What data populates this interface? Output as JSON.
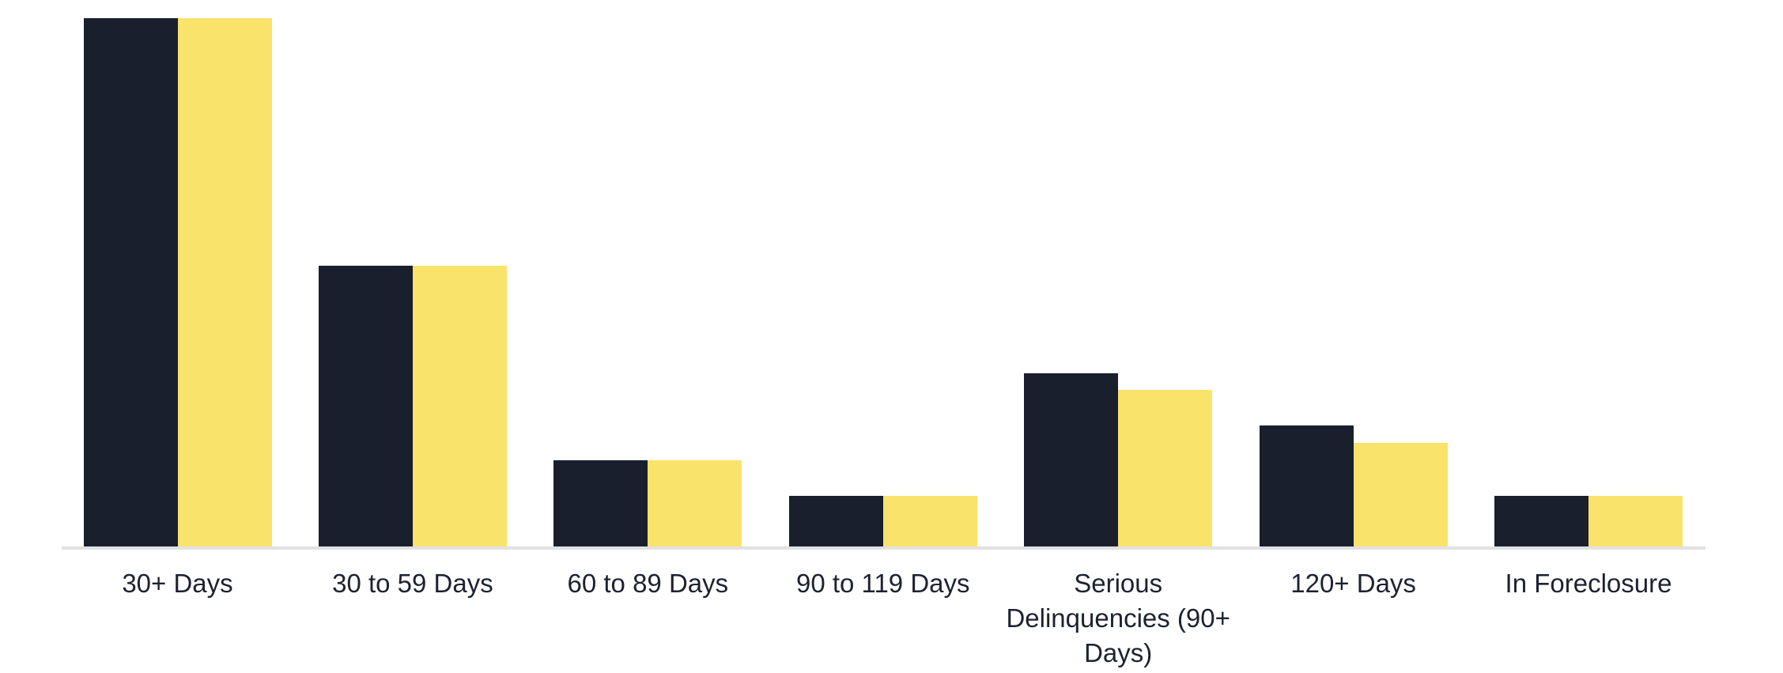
{
  "chart_data": {
    "type": "bar",
    "title": "",
    "xlabel": "",
    "ylabel": "",
    "categories": [
      "30+ Days",
      "30 to 59 Days",
      "60 to 89 Days",
      "90 to 119 Days",
      "Serious Delinquencies (90+ Days)",
      "120+ Days",
      "In Foreclosure"
    ],
    "series": [
      {
        "name": "series-dark-navy",
        "color": "#1A1F2E",
        "values": [
          1.0,
          0.531,
          0.163,
          0.096,
          0.328,
          0.229,
          0.096
        ]
      },
      {
        "name": "series-yellow",
        "color": "#F9E36B",
        "values": [
          1.0,
          0.531,
          0.163,
          0.096,
          0.296,
          0.196,
          0.096
        ]
      }
    ],
    "value_scale": "relative to tallest bar; no y-axis, gridlines or value labels are shown",
    "ylim": [
      0,
      1
    ],
    "grid": false,
    "legend": "none",
    "background": "#FFFFFF",
    "axis_line_color": "#E1E1E3",
    "label_color": "#1C2231"
  }
}
